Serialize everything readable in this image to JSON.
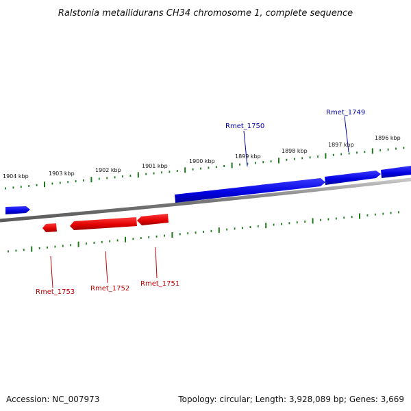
{
  "title": "Ralstonia metallidurans CH34 chromosome 1, complete sequence",
  "footer": {
    "accession": "Accession: NC_007973",
    "summary": "Topology: circular; Length: 3,928,089 bp; Genes: 3,669"
  },
  "colors": {
    "forward": "#0000e6",
    "reverse": "#e60000",
    "ticks": "#1a7a1a",
    "backbone": "#888888"
  },
  "kbp_labels": [
    "1904 kbp",
    "1903 kbp",
    "1902 kbp",
    "1901 kbp",
    "1900 kbp",
    "1899 kbp",
    "1898 kbp",
    "1897 kbp",
    "1896 kbp"
  ],
  "genes": {
    "forward": [
      "Rmet_1750",
      "Rmet_1749"
    ],
    "reverse": [
      "Rmet_1753",
      "Rmet_1752",
      "Rmet_1751"
    ]
  }
}
